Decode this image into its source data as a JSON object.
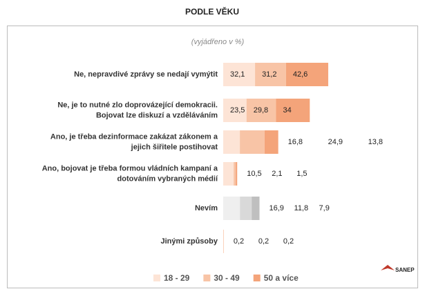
{
  "chart_data": {
    "type": "stacked_barh",
    "title": "PODLE VĚKU",
    "subtitle": "(vyjádřeno v %)",
    "logo": "SANEP",
    "categories": [
      "Ne, nepravdivé zprávy se nedají vymýtit",
      "Ne, je to nutné zlo doprovázející demokracii.\nBojovat lze diskuzí a vzděláváním",
      "Ano, je třeba dezinformace zakázat zákonem a\njejich šiřitele postihovat",
      "Ano, bojovat je třeba formou vládních kampaní a\ndotováním vybraných médií",
      "Nevím",
      "Jinými způsoby"
    ],
    "series": [
      {
        "name": "18 - 29",
        "color": "#fde4d6",
        "colors": [
          "#fde4d6",
          "#fde4d6",
          "#fde4d6",
          "#fde4d6",
          "#efefef",
          "#fde4d6"
        ],
        "values": [
          32.1,
          23.5,
          16.8,
          10.5,
          16.9,
          0.2
        ],
        "value_labels": [
          "32,1",
          "23,5",
          "16,8",
          "10,5",
          "16,9",
          "0,2"
        ]
      },
      {
        "name": "30 - 49",
        "color": "#f8c4a6",
        "colors": [
          "#f8c4a6",
          "#f8c4a6",
          "#f8c4a6",
          "#f8c4a6",
          "#d9d9d9",
          "#f8c4a6"
        ],
        "values": [
          31.2,
          29.8,
          24.9,
          2.1,
          11.8,
          0.2
        ],
        "value_labels": [
          "31,2",
          "29,8",
          "24,9",
          "2,1",
          "11,8",
          "0,2"
        ]
      },
      {
        "name": "50 a více",
        "color": "#f4a47a",
        "colors": [
          "#f4a47a",
          "#f4a47a",
          "#f4a47a",
          "#f4a47a",
          "#bfbfbf",
          "#f4a47a"
        ],
        "values": [
          42.6,
          34,
          13.8,
          1.5,
          7.9,
          0.2
        ],
        "value_labels": [
          "42,6",
          "34",
          "13,8",
          "1,5",
          "7,9",
          "0,2"
        ]
      }
    ],
    "legend": "bottom"
  }
}
